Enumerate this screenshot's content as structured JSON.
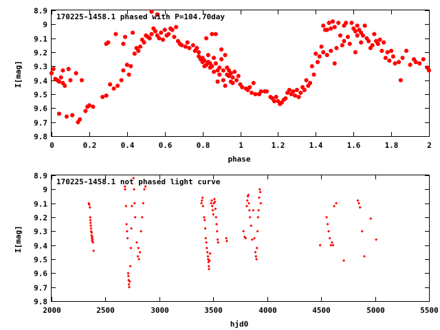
{
  "colors": {
    "points": "#ff0000",
    "axes": "#000000",
    "background": "#ffffff"
  },
  "chart_data": [
    {
      "type": "scatter",
      "title": "170225-1458.1 phased with P=104.70day",
      "xlabel": "phase",
      "ylabel": "I[mag]",
      "xlim": [
        0,
        2
      ],
      "ylim": [
        8.9,
        9.8
      ],
      "y_inverted": true,
      "grid": false,
      "legend": "none",
      "x_ticks": [
        "0",
        "0.2",
        "0.4",
        "0.6",
        "0.8",
        "1",
        "1.2",
        "1.4",
        "1.6",
        "1.8",
        "2"
      ],
      "y_ticks": [
        "8.9",
        "9",
        "9.1",
        "9.2",
        "9.3",
        "9.4",
        "9.5",
        "9.6",
        "9.7",
        "9.8"
      ],
      "marker": "asterisk",
      "points": [
        [
          0.0,
          9.35
        ],
        [
          0.01,
          9.32
        ],
        [
          0.02,
          9.39
        ],
        [
          0.03,
          9.4
        ],
        [
          0.04,
          9.41
        ],
        [
          0.04,
          9.64
        ],
        [
          0.05,
          9.38
        ],
        [
          0.06,
          9.42
        ],
        [
          0.06,
          9.33
        ],
        [
          0.07,
          9.44
        ],
        [
          0.08,
          9.66
        ],
        [
          0.09,
          9.32
        ],
        [
          0.1,
          9.4
        ],
        [
          0.11,
          9.65
        ],
        [
          0.13,
          9.35
        ],
        [
          0.14,
          9.7
        ],
        [
          0.15,
          9.68
        ],
        [
          0.16,
          9.4
        ],
        [
          0.18,
          9.62
        ],
        [
          0.19,
          9.59
        ],
        [
          0.2,
          9.58
        ],
        [
          0.22,
          9.59
        ],
        [
          0.27,
          9.52
        ],
        [
          0.29,
          9.51
        ],
        [
          0.29,
          9.14
        ],
        [
          0.3,
          9.13
        ],
        [
          0.31,
          9.43
        ],
        [
          0.33,
          9.46
        ],
        [
          0.34,
          9.07
        ],
        [
          0.35,
          9.44
        ],
        [
          0.37,
          9.4
        ],
        [
          0.38,
          9.33
        ],
        [
          0.38,
          9.14
        ],
        [
          0.39,
          9.09
        ],
        [
          0.4,
          9.29
        ],
        [
          0.41,
          9.36
        ],
        [
          0.42,
          9.3
        ],
        [
          0.43,
          9.06
        ],
        [
          0.44,
          9.21
        ],
        [
          0.45,
          9.17
        ],
        [
          0.46,
          9.19
        ],
        [
          0.47,
          9.16
        ],
        [
          0.48,
          9.11
        ],
        [
          0.49,
          9.13
        ],
        [
          0.5,
          9.08
        ],
        [
          0.51,
          9.09
        ],
        [
          0.52,
          9.1
        ],
        [
          0.53,
          9.07
        ],
        [
          0.53,
          8.91
        ],
        [
          0.54,
          9.03
        ],
        [
          0.55,
          9.05
        ],
        [
          0.56,
          9.08
        ],
        [
          0.56,
          8.93
        ],
        [
          0.57,
          9.1
        ],
        [
          0.58,
          9.06
        ],
        [
          0.59,
          9.11
        ],
        [
          0.6,
          9.04
        ],
        [
          0.61,
          9.08
        ],
        [
          0.62,
          9.07
        ],
        [
          0.63,
          9.03
        ],
        [
          0.64,
          9.04
        ],
        [
          0.65,
          9.09
        ],
        [
          0.66,
          9.02
        ],
        [
          0.67,
          9.12
        ],
        [
          0.68,
          9.14
        ],
        [
          0.69,
          9.15
        ],
        [
          0.71,
          9.16
        ],
        [
          0.72,
          9.13
        ],
        [
          0.73,
          9.17
        ],
        [
          0.75,
          9.15
        ],
        [
          0.76,
          9.19
        ],
        [
          0.77,
          9.17
        ],
        [
          0.78,
          9.2
        ],
        [
          0.78,
          9.23
        ],
        [
          0.79,
          9.25
        ],
        [
          0.8,
          9.24
        ],
        [
          0.8,
          9.27
        ],
        [
          0.81,
          9.26
        ],
        [
          0.81,
          9.3
        ],
        [
          0.82,
          9.29
        ],
        [
          0.82,
          9.1
        ],
        [
          0.83,
          9.22
        ],
        [
          0.83,
          9.27
        ],
        [
          0.84,
          9.31
        ],
        [
          0.84,
          9.28
        ],
        [
          0.85,
          9.3
        ],
        [
          0.85,
          9.07
        ],
        [
          0.86,
          9.24
        ],
        [
          0.86,
          9.34
        ],
        [
          0.87,
          9.28
        ],
        [
          0.87,
          9.07
        ],
        [
          0.88,
          9.33
        ],
        [
          0.88,
          9.41
        ],
        [
          0.89,
          9.31
        ],
        [
          0.89,
          9.36
        ],
        [
          0.9,
          9.18
        ],
        [
          0.9,
          9.25
        ],
        [
          0.91,
          9.4
        ],
        [
          0.91,
          9.33
        ],
        [
          0.92,
          9.44
        ],
        [
          0.92,
          9.22
        ],
        [
          0.93,
          9.36
        ],
        [
          0.93,
          9.31
        ],
        [
          0.94,
          9.37
        ],
        [
          0.94,
          9.33
        ],
        [
          0.95,
          9.41
        ],
        [
          0.95,
          9.35
        ],
        [
          0.96,
          9.38
        ],
        [
          0.96,
          9.42
        ],
        [
          0.97,
          9.34
        ],
        [
          0.98,
          9.4
        ],
        [
          0.99,
          9.37
        ],
        [
          1.0,
          9.43
        ],
        [
          1.01,
          9.45
        ],
        [
          1.03,
          9.46
        ],
        [
          1.04,
          9.47
        ],
        [
          1.05,
          9.45
        ],
        [
          1.06,
          9.49
        ],
        [
          1.07,
          9.42
        ],
        [
          1.08,
          9.5
        ],
        [
          1.1,
          9.5
        ],
        [
          1.11,
          9.48
        ],
        [
          1.13,
          9.48
        ],
        [
          1.14,
          9.48
        ],
        [
          1.16,
          9.52
        ],
        [
          1.17,
          9.53
        ],
        [
          1.18,
          9.55
        ],
        [
          1.19,
          9.52
        ],
        [
          1.2,
          9.55
        ],
        [
          1.21,
          9.57
        ],
        [
          1.22,
          9.56
        ],
        [
          1.23,
          9.54
        ],
        [
          1.24,
          9.53
        ],
        [
          1.25,
          9.49
        ],
        [
          1.26,
          9.47
        ],
        [
          1.27,
          9.5
        ],
        [
          1.28,
          9.48
        ],
        [
          1.29,
          9.51
        ],
        [
          1.3,
          9.47
        ],
        [
          1.31,
          9.52
        ],
        [
          1.32,
          9.49
        ],
        [
          1.33,
          9.45
        ],
        [
          1.34,
          9.47
        ],
        [
          1.35,
          9.4
        ],
        [
          1.36,
          9.44
        ],
        [
          1.37,
          9.42
        ],
        [
          1.38,
          9.3
        ],
        [
          1.39,
          9.36
        ],
        [
          1.4,
          9.21
        ],
        [
          1.41,
          9.27
        ],
        [
          1.42,
          9.23
        ],
        [
          1.43,
          9.16
        ],
        [
          1.44,
          9.2
        ],
        [
          1.44,
          9.01
        ],
        [
          1.45,
          9.04
        ],
        [
          1.46,
          9.22
        ],
        [
          1.46,
          9.04
        ],
        [
          1.47,
          8.99
        ],
        [
          1.48,
          9.19
        ],
        [
          1.48,
          9.03
        ],
        [
          1.49,
          8.98
        ],
        [
          1.5,
          9.28
        ],
        [
          1.5,
          9.02
        ],
        [
          1.51,
          9.17
        ],
        [
          1.52,
          8.99
        ],
        [
          1.53,
          9.08
        ],
        [
          1.54,
          9.15
        ],
        [
          1.55,
          9.01
        ],
        [
          1.55,
          9.12
        ],
        [
          1.56,
          8.99
        ],
        [
          1.57,
          9.09
        ],
        [
          1.58,
          9.14
        ],
        [
          1.59,
          8.99
        ],
        [
          1.6,
          9.03
        ],
        [
          1.61,
          9.05
        ],
        [
          1.61,
          9.2
        ],
        [
          1.62,
          9.08
        ],
        [
          1.62,
          9.01
        ],
        [
          1.63,
          9.04
        ],
        [
          1.64,
          9.06
        ],
        [
          1.64,
          9.13
        ],
        [
          1.65,
          9.08
        ],
        [
          1.66,
          9.01
        ],
        [
          1.67,
          9.1
        ],
        [
          1.68,
          9.12
        ],
        [
          1.69,
          9.17
        ],
        [
          1.7,
          9.15
        ],
        [
          1.71,
          9.07
        ],
        [
          1.72,
          9.12
        ],
        [
          1.73,
          9.14
        ],
        [
          1.74,
          9.11
        ],
        [
          1.75,
          9.19
        ],
        [
          1.76,
          9.13
        ],
        [
          1.77,
          9.24
        ],
        [
          1.78,
          9.2
        ],
        [
          1.79,
          9.26
        ],
        [
          1.8,
          9.19
        ],
        [
          1.81,
          9.23
        ],
        [
          1.82,
          9.28
        ],
        [
          1.84,
          9.27
        ],
        [
          1.85,
          9.4
        ],
        [
          1.86,
          9.24
        ],
        [
          1.88,
          9.19
        ],
        [
          1.9,
          9.29
        ],
        [
          1.92,
          9.25
        ],
        [
          1.93,
          9.27
        ],
        [
          1.95,
          9.28
        ],
        [
          1.97,
          9.25
        ],
        [
          1.99,
          9.31
        ],
        [
          2.0,
          9.33
        ]
      ]
    },
    {
      "type": "scatter",
      "title": "170225-1458.1 not phased light curve",
      "xlabel": "hjd0",
      "ylabel": "I[mag]",
      "xlim": [
        2000,
        5500
      ],
      "ylim": [
        8.9,
        9.8
      ],
      "y_inverted": true,
      "grid": false,
      "legend": "none",
      "x_ticks": [
        "2000",
        "2500",
        "3000",
        "3500",
        "4000",
        "4500",
        "5000",
        "5500"
      ],
      "y_ticks": [
        "8.9",
        "9",
        "9.1",
        "9.2",
        "9.3",
        "9.4",
        "9.5",
        "9.6",
        "9.7",
        "9.8"
      ],
      "marker": "diamond",
      "points": [
        [
          2345,
          9.1
        ],
        [
          2350,
          9.11
        ],
        [
          2355,
          9.13
        ],
        [
          2358,
          9.2
        ],
        [
          2360,
          9.22
        ],
        [
          2362,
          9.24
        ],
        [
          2364,
          9.26
        ],
        [
          2366,
          9.28
        ],
        [
          2368,
          9.3
        ],
        [
          2370,
          9.33
        ],
        [
          2372,
          9.31
        ],
        [
          2374,
          9.35
        ],
        [
          2376,
          9.37
        ],
        [
          2378,
          9.34
        ],
        [
          2380,
          9.36
        ],
        [
          2385,
          9.38
        ],
        [
          2390,
          9.44
        ],
        [
          2680,
          8.98
        ],
        [
          2682,
          9.0
        ],
        [
          2690,
          9.12
        ],
        [
          2695,
          9.25
        ],
        [
          2700,
          9.3
        ],
        [
          2705,
          9.35
        ],
        [
          2710,
          9.6
        ],
        [
          2712,
          9.62
        ],
        [
          2715,
          9.65
        ],
        [
          2718,
          9.68
        ],
        [
          2720,
          9.7
        ],
        [
          2725,
          9.66
        ],
        [
          2730,
          9.55
        ],
        [
          2735,
          9.42
        ],
        [
          2740,
          9.28
        ],
        [
          2745,
          9.12
        ],
        [
          2760,
          8.92
        ],
        [
          2765,
          9.0
        ],
        [
          2770,
          9.1
        ],
        [
          2775,
          9.2
        ],
        [
          2790,
          9.38
        ],
        [
          2800,
          9.48
        ],
        [
          2805,
          9.42
        ],
        [
          2810,
          9.5
        ],
        [
          2820,
          9.45
        ],
        [
          2830,
          9.3
        ],
        [
          2840,
          9.2
        ],
        [
          2850,
          9.1
        ],
        [
          2860,
          9.0
        ],
        [
          2870,
          8.98
        ],
        [
          3390,
          9.1
        ],
        [
          3395,
          9.08
        ],
        [
          3400,
          9.06
        ],
        [
          3405,
          9.12
        ],
        [
          3415,
          9.2
        ],
        [
          3420,
          9.22
        ],
        [
          3425,
          9.28
        ],
        [
          3430,
          9.35
        ],
        [
          3435,
          9.38
        ],
        [
          3440,
          9.42
        ],
        [
          3445,
          9.45
        ],
        [
          3450,
          9.48
        ],
        [
          3452,
          9.5
        ],
        [
          3455,
          9.52
        ],
        [
          3458,
          9.55
        ],
        [
          3460,
          9.57
        ],
        [
          3465,
          9.51
        ],
        [
          3470,
          9.46
        ],
        [
          3480,
          9.1
        ],
        [
          3485,
          9.08
        ],
        [
          3490,
          9.12
        ],
        [
          3495,
          9.15
        ],
        [
          3500,
          9.18
        ],
        [
          3505,
          9.1
        ],
        [
          3510,
          9.07
        ],
        [
          3515,
          9.09
        ],
        [
          3520,
          9.14
        ],
        [
          3525,
          9.2
        ],
        [
          3530,
          9.25
        ],
        [
          3535,
          9.3
        ],
        [
          3540,
          9.36
        ],
        [
          3545,
          9.38
        ],
        [
          3620,
          9.35
        ],
        [
          3625,
          9.37
        ],
        [
          3780,
          9.3
        ],
        [
          3790,
          9.34
        ],
        [
          3800,
          9.35
        ],
        [
          3810,
          9.12
        ],
        [
          3815,
          9.08
        ],
        [
          3820,
          9.05
        ],
        [
          3825,
          9.04
        ],
        [
          3830,
          9.1
        ],
        [
          3835,
          9.15
        ],
        [
          3840,
          9.2
        ],
        [
          3850,
          9.26
        ],
        [
          3860,
          9.36
        ],
        [
          3870,
          9.15
        ],
        [
          3880,
          9.35
        ],
        [
          3890,
          9.45
        ],
        [
          3895,
          9.48
        ],
        [
          3900,
          9.5
        ],
        [
          3905,
          9.42
        ],
        [
          3910,
          9.3
        ],
        [
          3915,
          9.2
        ],
        [
          3920,
          9.15
        ],
        [
          3925,
          9.06
        ],
        [
          3930,
          9.0
        ],
        [
          3935,
          9.02
        ],
        [
          3940,
          9.1
        ],
        [
          4490,
          9.4
        ],
        [
          4550,
          9.2
        ],
        [
          4560,
          9.25
        ],
        [
          4570,
          9.3
        ],
        [
          4580,
          9.35
        ],
        [
          4590,
          9.4
        ],
        [
          4600,
          9.38
        ],
        [
          4610,
          9.4
        ],
        [
          4620,
          9.12
        ],
        [
          4640,
          9.1
        ],
        [
          4710,
          9.51
        ],
        [
          4840,
          9.08
        ],
        [
          4850,
          9.1
        ],
        [
          4860,
          9.13
        ],
        [
          4880,
          9.3
        ],
        [
          4900,
          9.48
        ],
        [
          4960,
          9.21
        ],
        [
          5010,
          9.36
        ]
      ]
    }
  ]
}
